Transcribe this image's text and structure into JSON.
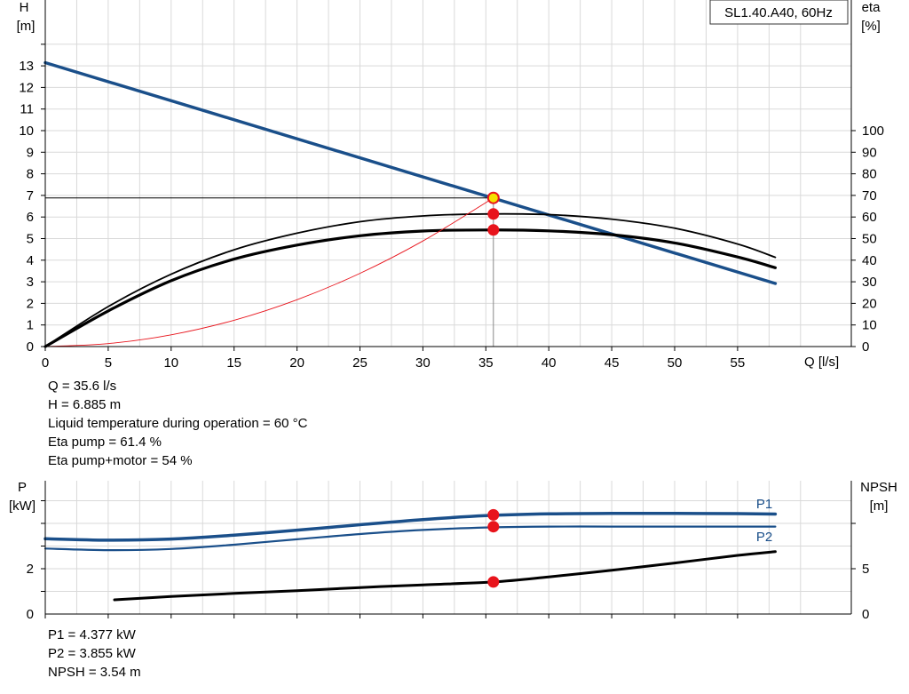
{
  "chart_data": [
    {
      "type": "line",
      "title": "SL1.40.A40, 60Hz",
      "xlabel": "Q [l/s]",
      "ylabel": [
        "H",
        "[m]"
      ],
      "y2label": [
        "eta",
        "[%]"
      ],
      "xlim": [
        0,
        61
      ],
      "ylim": [
        0,
        14
      ],
      "y2lim": [
        0,
        140
      ],
      "x_ticks": [
        "0",
        "5",
        "10",
        "15",
        "20",
        "25",
        "30",
        "35",
        "40",
        "45",
        "50",
        "55"
      ],
      "y_ticks": [
        "0",
        "1",
        "2",
        "3",
        "4",
        "5",
        "6",
        "7",
        "8",
        "9",
        "10",
        "11",
        "12",
        "13"
      ],
      "y2_ticks": [
        "0",
        "10",
        "20",
        "30",
        "40",
        "50",
        "60",
        "70",
        "80",
        "90",
        "100"
      ],
      "grid": true,
      "series": [
        {
          "role": "H",
          "axis": "y",
          "color": "#1a4f8a",
          "width": 3.5,
          "x": [
            0,
            58
          ],
          "y": [
            13.15,
            2.92
          ]
        },
        {
          "role": "eta_pump",
          "axis": "y2",
          "color": "#000000",
          "width": 1.8,
          "x": [
            0,
            5,
            10,
            15,
            20,
            25,
            30,
            35,
            40,
            45,
            50,
            55,
            58
          ],
          "y": [
            0,
            18.5,
            33.5,
            44.8,
            52.5,
            57.8,
            60.5,
            61.4,
            61.1,
            59.0,
            54.8,
            47.5,
            41.3
          ]
        },
        {
          "role": "eta_pump_motor",
          "axis": "y2",
          "color": "#000000",
          "width": 3.2,
          "x": [
            0,
            5,
            10,
            15,
            20,
            25,
            30,
            35,
            40,
            45,
            50,
            55,
            58
          ],
          "y": [
            0,
            16.5,
            30.5,
            40.5,
            47.0,
            51.3,
            53.5,
            54.0,
            53.6,
            51.8,
            48.0,
            41.5,
            36.5
          ]
        },
        {
          "role": "system",
          "axis": "y",
          "color": "#e8141c",
          "width": 0.9,
          "x": [
            0,
            5,
            10,
            15,
            20,
            25,
            30,
            35.6
          ],
          "y": [
            0,
            0.136,
            0.543,
            1.22,
            2.17,
            3.39,
            4.89,
            6.885
          ]
        }
      ],
      "markers": [
        {
          "x": 35.6,
          "y": 6.885,
          "axis": "y",
          "fill": "#f5e000",
          "stroke": "#e8141c"
        },
        {
          "x": 35.6,
          "y": 61.4,
          "axis": "y2",
          "fill": "#e8141c",
          "stroke": "#e8141c"
        },
        {
          "x": 35.6,
          "y": 54,
          "axis": "y2",
          "fill": "#e8141c",
          "stroke": "#e8141c"
        }
      ]
    },
    {
      "type": "line",
      "xlabel": "",
      "ylabel": [
        "P",
        "[kW]"
      ],
      "y2label": [
        "NPSH",
        "[m]"
      ],
      "xlim": [
        0,
        61
      ],
      "ylim": [
        0,
        6
      ],
      "y2lim": [
        0,
        20
      ],
      "y_ticks": [
        "0",
        "2"
      ],
      "y_tick_values": [
        0,
        2
      ],
      "y2_ticks": [
        "0",
        "5"
      ],
      "y2_tick_values": [
        0,
        5
      ],
      "grid": true,
      "series": [
        {
          "name": "P1",
          "axis": "y",
          "color": "#1a4f8a",
          "width": 3.5,
          "x": [
            0,
            5,
            10,
            15,
            20,
            25,
            30,
            35,
            40,
            45,
            50,
            55,
            58
          ],
          "y": [
            3.32,
            3.26,
            3.31,
            3.48,
            3.7,
            3.94,
            4.17,
            4.34,
            4.42,
            4.44,
            4.44,
            4.43,
            4.41
          ]
        },
        {
          "name": "P2",
          "axis": "y",
          "color": "#1a4f8a",
          "width": 2.2,
          "x": [
            0,
            5,
            10,
            15,
            20,
            25,
            30,
            35,
            40,
            45,
            50,
            55,
            58
          ],
          "y": [
            2.89,
            2.82,
            2.87,
            3.06,
            3.3,
            3.53,
            3.71,
            3.82,
            3.86,
            3.86,
            3.86,
            3.86,
            3.86
          ]
        },
        {
          "name": "",
          "axis": "y2",
          "color": "#000000",
          "width": 3.0,
          "x": [
            5.5,
            10,
            15,
            20,
            25,
            30,
            35.6,
            40,
            45,
            50,
            55,
            58
          ],
          "y": [
            1.57,
            1.93,
            2.27,
            2.58,
            2.92,
            3.22,
            3.54,
            4.1,
            4.83,
            5.63,
            6.47,
            6.88
          ]
        }
      ],
      "markers": [
        {
          "x": 35.6,
          "y": 4.377,
          "axis": "y",
          "fill": "#e8141c"
        },
        {
          "x": 35.6,
          "y": 3.855,
          "axis": "y",
          "fill": "#e8141c"
        },
        {
          "x": 35.6,
          "y": 3.54,
          "axis": "y2",
          "fill": "#e8141c"
        }
      ]
    }
  ],
  "info_top": [
    "Q = 35.6 l/s",
    "H = 6.885 m",
    "Liquid temperature during operation = 60 °C",
    "Eta pump = 61.4 %",
    "Eta pump+motor = 54 %"
  ],
  "info_bottom": [
    "P1 = 4.377 kW",
    "P2 = 3.855 kW",
    "NPSH = 3.54 m"
  ]
}
